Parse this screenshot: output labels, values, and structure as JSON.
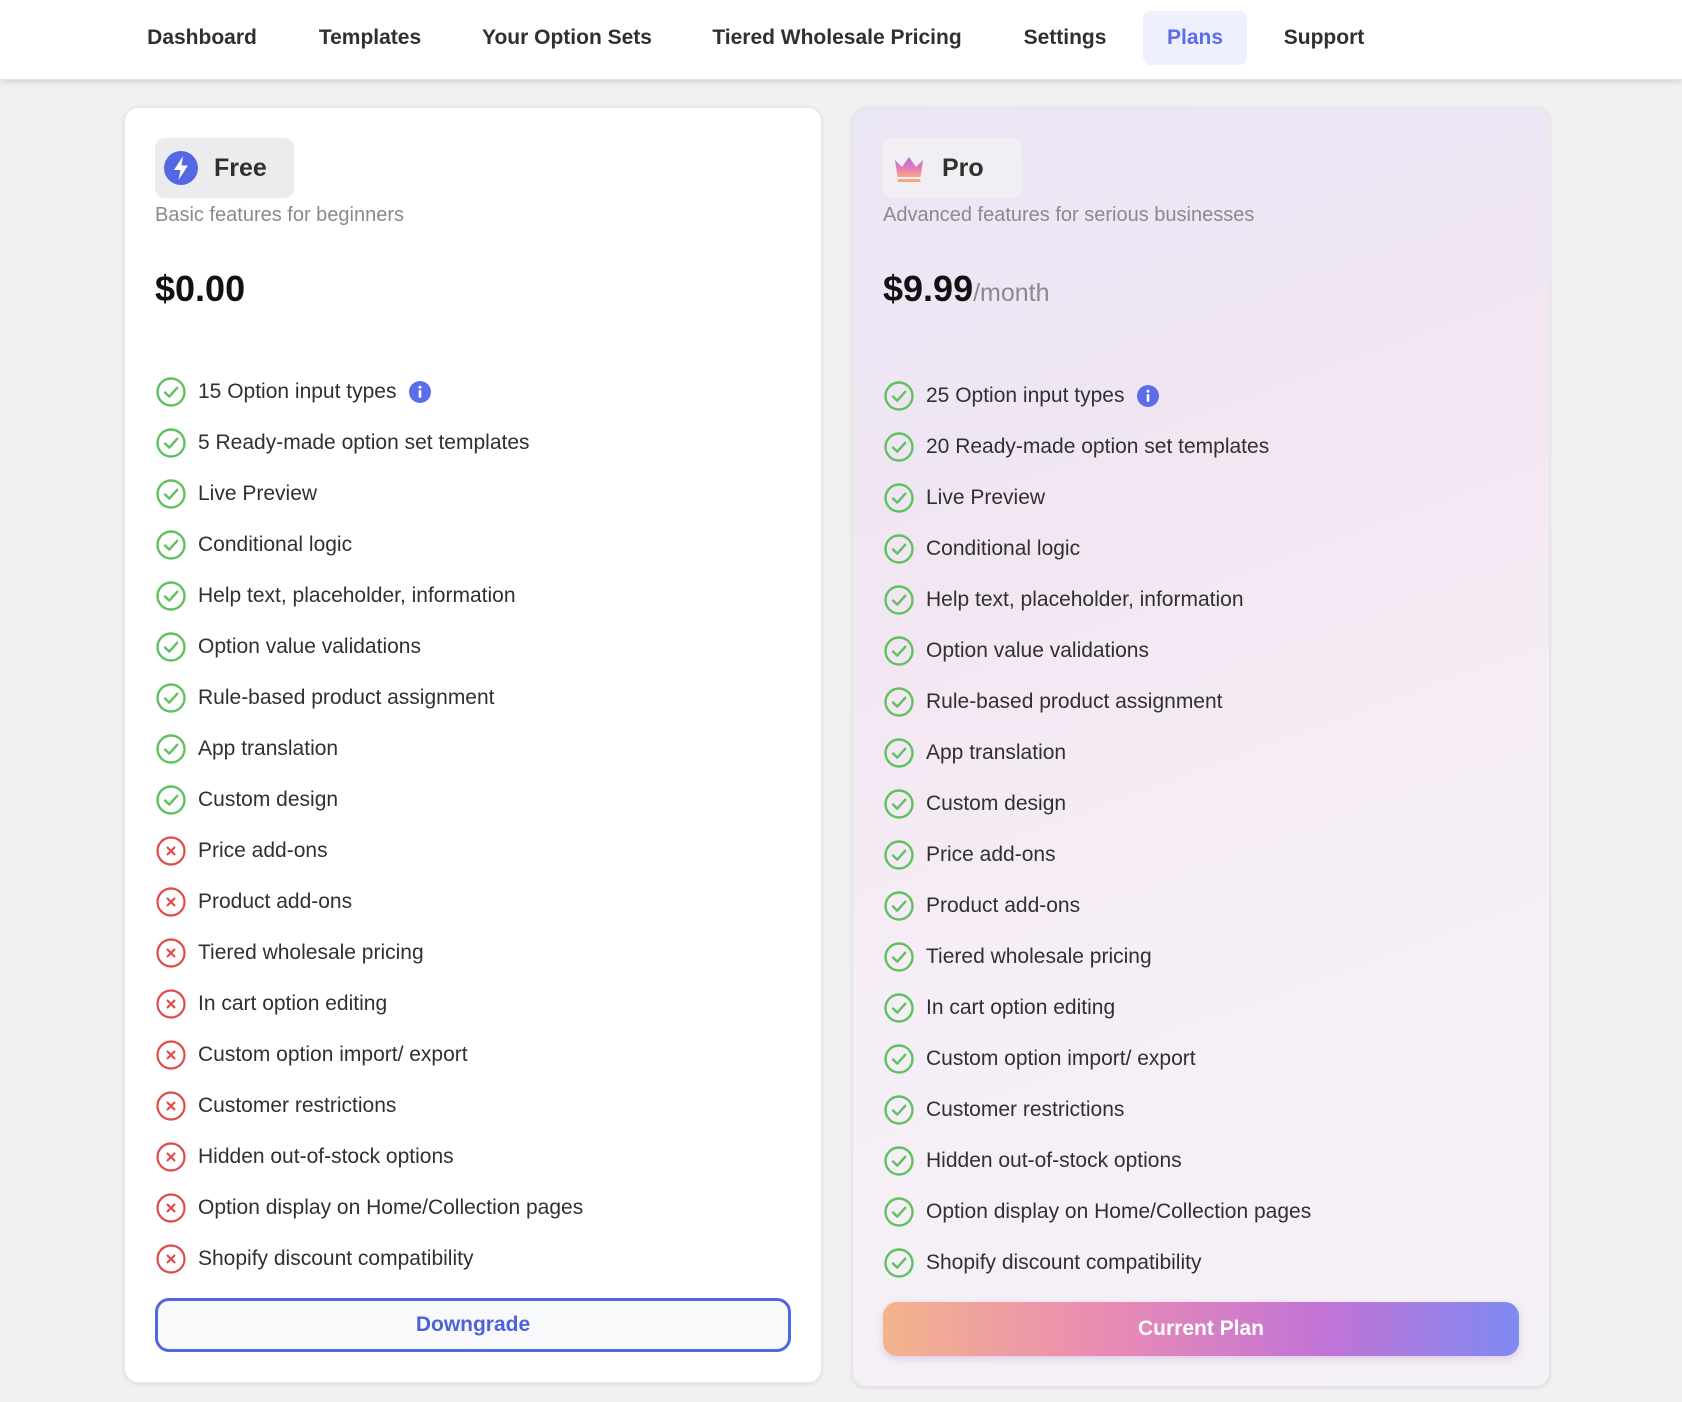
{
  "nav": {
    "tabs": [
      {
        "label": "Dashboard"
      },
      {
        "label": "Templates"
      },
      {
        "label": "Your Option Sets"
      },
      {
        "label": "Tiered Wholesale Pricing"
      },
      {
        "label": "Settings"
      },
      {
        "label": "Plans",
        "active": true
      },
      {
        "label": "Support"
      }
    ]
  },
  "colors": {
    "accent": "#5b6ee8",
    "check": "#5fc15f",
    "cross": "#e04b4b"
  },
  "free": {
    "name": "Free",
    "icon": "lightning-icon",
    "subtitle": "Basic features for beginners",
    "price": "$0.00",
    "features": [
      {
        "label": "15 Option input types",
        "included": true,
        "info": true
      },
      {
        "label": "5 Ready-made option set templates",
        "included": true
      },
      {
        "label": "Live Preview",
        "included": true
      },
      {
        "label": "Conditional logic",
        "included": true
      },
      {
        "label": "Help text, placeholder, information",
        "included": true
      },
      {
        "label": "Option value validations",
        "included": true
      },
      {
        "label": "Rule-based product assignment",
        "included": true
      },
      {
        "label": "App translation",
        "included": true
      },
      {
        "label": "Custom design",
        "included": true
      },
      {
        "label": "Price add-ons",
        "included": false
      },
      {
        "label": "Product add-ons",
        "included": false
      },
      {
        "label": "Tiered wholesale pricing",
        "included": false
      },
      {
        "label": "In cart option editing",
        "included": false
      },
      {
        "label": "Custom option import/ export",
        "included": false
      },
      {
        "label": "Customer restrictions",
        "included": false
      },
      {
        "label": "Hidden out-of-stock options",
        "included": false
      },
      {
        "label": "Option display on Home/Collection pages",
        "included": false
      },
      {
        "label": "Shopify discount compatibility",
        "included": false
      }
    ],
    "button": "Downgrade"
  },
  "pro": {
    "name": "Pro",
    "icon": "crown-icon",
    "subtitle": "Advanced features for serious businesses",
    "price": "$9.99",
    "period": "/month",
    "features": [
      {
        "label": "25 Option input types",
        "included": true,
        "info": true
      },
      {
        "label": "20 Ready-made option set templates",
        "included": true
      },
      {
        "label": "Live Preview",
        "included": true
      },
      {
        "label": "Conditional logic",
        "included": true
      },
      {
        "label": "Help text, placeholder, information",
        "included": true
      },
      {
        "label": "Option value validations",
        "included": true
      },
      {
        "label": "Rule-based product assignment",
        "included": true
      },
      {
        "label": "App translation",
        "included": true
      },
      {
        "label": "Custom design",
        "included": true
      },
      {
        "label": "Price add-ons",
        "included": true
      },
      {
        "label": "Product add-ons",
        "included": true
      },
      {
        "label": "Tiered wholesale pricing",
        "included": true
      },
      {
        "label": "In cart option editing",
        "included": true
      },
      {
        "label": "Custom option import/ export",
        "included": true
      },
      {
        "label": "Customer restrictions",
        "included": true
      },
      {
        "label": "Hidden out-of-stock options",
        "included": true
      },
      {
        "label": "Option display on Home/Collection pages",
        "included": true
      },
      {
        "label": "Shopify discount compatibility",
        "included": true
      }
    ],
    "button": "Current Plan"
  }
}
